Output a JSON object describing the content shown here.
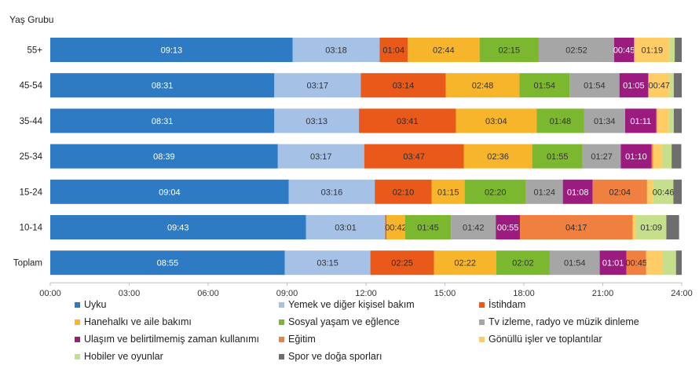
{
  "chart_data": {
    "type": "bar",
    "orientation": "horizontal",
    "stacked": true,
    "ylabel": "Yaş Grubu",
    "categories": [
      "55+",
      "45-54",
      "35-44",
      "25-34",
      "15-24",
      "10-14",
      "Toplam"
    ],
    "x_ticks": [
      "00:00",
      "03:00",
      "06:00",
      "09:00",
      "12:00",
      "15:00",
      "18:00",
      "21:00",
      "24:00"
    ],
    "xlim_hours": [
      0,
      24
    ],
    "legend_position": "bottom",
    "series": [
      {
        "name": "Uyku",
        "color": "#2E7BC4",
        "values": [
          "09:13",
          "08:31",
          "08:31",
          "08:39",
          "09:04",
          "09:43",
          "08:55"
        ],
        "labels": [
          "09:13",
          "08:31",
          "08:31",
          "08:39",
          "09:04",
          "09:43",
          "08:55"
        ]
      },
      {
        "name": "Yemek ve diğer kişisel bakım",
        "color": "#A5C1E6",
        "values": [
          "03:18",
          "03:17",
          "03:13",
          "03:17",
          "03:16",
          "03:01",
          "03:15"
        ],
        "labels": [
          "03:18",
          "03:17",
          "03:13",
          "03:17",
          "03:16",
          "03:01",
          "03:15"
        ]
      },
      {
        "name": "İstihdam",
        "color": "#E8591A",
        "values": [
          "01:04",
          "03:14",
          "03:41",
          "03:47",
          "02:10",
          "00:03",
          "02:25"
        ],
        "labels": [
          "01:04",
          "03:14",
          "03:41",
          "03:47",
          "02:10",
          "",
          "02:25"
        ]
      },
      {
        "name": "Hanehalkı ve aile bakımı",
        "color": "#F7B52C",
        "values": [
          "02:44",
          "02:48",
          "03:04",
          "02:36",
          "01:15",
          "00:42",
          "02:22"
        ],
        "labels": [
          "02:44",
          "02:48",
          "03:04",
          "02:36",
          "01:15",
          "00:42",
          "02:22"
        ]
      },
      {
        "name": "Sosyal yaşam ve eğlence",
        "color": "#7CB82F",
        "values": [
          "02:15",
          "01:54",
          "01:48",
          "01:55",
          "02:20",
          "01:45",
          "02:02"
        ],
        "labels": [
          "02:15",
          "01:54",
          "01:48",
          "01:55",
          "02:20",
          "01:45",
          "02:02"
        ]
      },
      {
        "name": "Tv izleme, radyo ve müzik dinleme",
        "color": "#A6A6A6",
        "values": [
          "02:52",
          "01:54",
          "01:34",
          "01:27",
          "01:24",
          "01:42",
          "01:54"
        ],
        "labels": [
          "02:52",
          "01:54",
          "01:34",
          "01:27",
          "01:24",
          "01:42",
          "01:54"
        ]
      },
      {
        "name": "Ulaşım ve belirtilmemiş zaman kullanımı",
        "color": "#9B1B7E",
        "values": [
          "00:45",
          "01:05",
          "01:11",
          "01:10",
          "01:08",
          "00:55",
          "01:01"
        ],
        "labels": [
          "00:45",
          "01:05",
          "01:11",
          "01:10",
          "01:08",
          "00:55",
          "01:01"
        ]
      },
      {
        "name": "Eğitim",
        "color": "#F08040",
        "values": [
          "00:02",
          "00:02",
          "00:02",
          "00:04",
          "02:04",
          "04:17",
          "00:45"
        ],
        "labels": [
          "",
          "",
          "",
          "",
          "02:04",
          "04:17",
          "00:45"
        ]
      },
      {
        "name": "Gönüllü işler ve toplantılar",
        "color": "#FFCC66",
        "values": [
          "01:19",
          "00:47",
          "00:26",
          "00:20",
          "00:14",
          "00:08",
          "00:38"
        ],
        "labels": [
          "01:19",
          "00:47",
          "",
          "",
          "",
          "",
          ""
        ]
      },
      {
        "name": "Hobiler ve oyunlar",
        "color": "#C6DF8C",
        "values": [
          "00:12",
          "00:10",
          "00:12",
          "00:22",
          "00:46",
          "01:09",
          "00:30"
        ],
        "labels": [
          "",
          "",
          "",
          "",
          "00:46",
          "01:09",
          ""
        ]
      },
      {
        "name": "Spor ve doğa sporları",
        "color": "#6E6E6E",
        "values": [
          "00:16",
          "00:18",
          "00:18",
          "00:22",
          "00:19",
          "00:29",
          "00:13"
        ],
        "labels": [
          "",
          "",
          "",
          "",
          "",
          "",
          ""
        ]
      }
    ]
  }
}
